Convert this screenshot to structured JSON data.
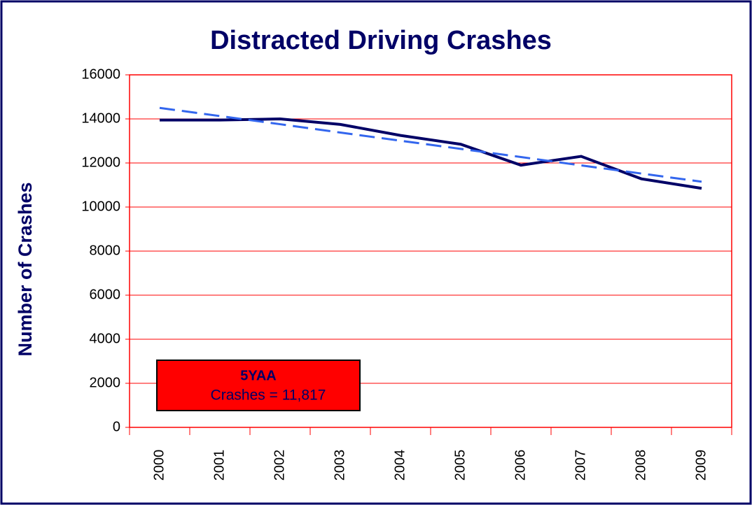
{
  "chart_data": {
    "type": "line",
    "title": "Distracted Driving Crashes",
    "y_label": "Number of Crashes",
    "categories": [
      "2000",
      "2001",
      "2002",
      "2003",
      "2004",
      "2005",
      "2006",
      "2007",
      "2008",
      "2009"
    ],
    "series": [
      {
        "color": "#000066",
        "style": "solid",
        "values": [
          13950,
          13950,
          14000,
          13750,
          13250,
          12850,
          11900,
          12300,
          11280,
          10850
        ]
      },
      {
        "color": "#3366ee",
        "style": "dashed",
        "values": [
          14500,
          14130,
          13760,
          13380,
          13010,
          12640,
          12270,
          11890,
          11520,
          11150
        ]
      }
    ],
    "ylim": [
      0,
      16000
    ],
    "yticks": [
      0,
      2000,
      4000,
      6000,
      8000,
      10000,
      12000,
      14000,
      16000
    ],
    "grid": true,
    "grid_color": "#ff0000",
    "annotation": {
      "title": "5YAA",
      "text": "Crashes = 11,817",
      "color": "#ff0000"
    }
  }
}
